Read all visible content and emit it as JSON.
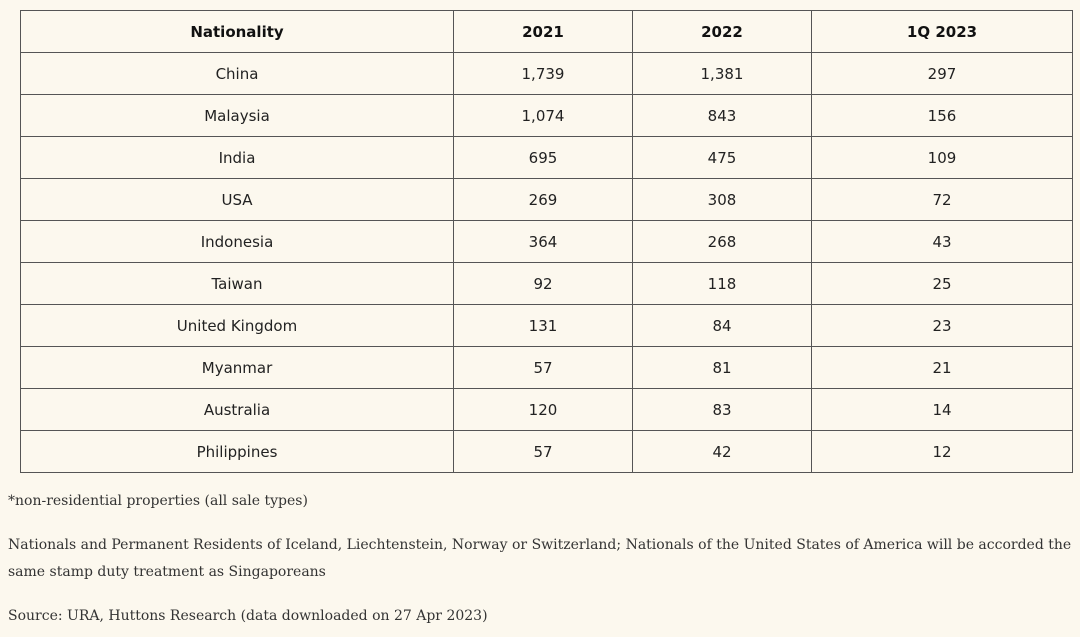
{
  "table": {
    "headers": [
      "Nationality",
      "2021",
      "2022",
      "1Q 2023"
    ],
    "rows": [
      [
        "China",
        "1,739",
        "1,381",
        "297"
      ],
      [
        "Malaysia",
        "1,074",
        "843",
        "156"
      ],
      [
        "India",
        "695",
        "475",
        "109"
      ],
      [
        "USA",
        "269",
        "308",
        "72"
      ],
      [
        "Indonesia",
        "364",
        "268",
        "43"
      ],
      [
        "Taiwan",
        "92",
        "118",
        "25"
      ],
      [
        "United Kingdom",
        "131",
        "84",
        "23"
      ],
      [
        "Myanmar",
        "57",
        "81",
        "21"
      ],
      [
        "Australia",
        "120",
        "83",
        "14"
      ],
      [
        "Philippines",
        "57",
        "42",
        "12"
      ]
    ]
  },
  "notes": {
    "footnote": "*non-residential properties (all sale types)",
    "stamp_duty": "Nationals and Permanent Residents of Iceland, Liechtenstein, Norway or Switzerland; Nationals of the United States of America will be accorded the same stamp duty treatment as Singaporeans",
    "source": "Source: URA, Huttons Research (data downloaded on 27 Apr 2023)"
  }
}
